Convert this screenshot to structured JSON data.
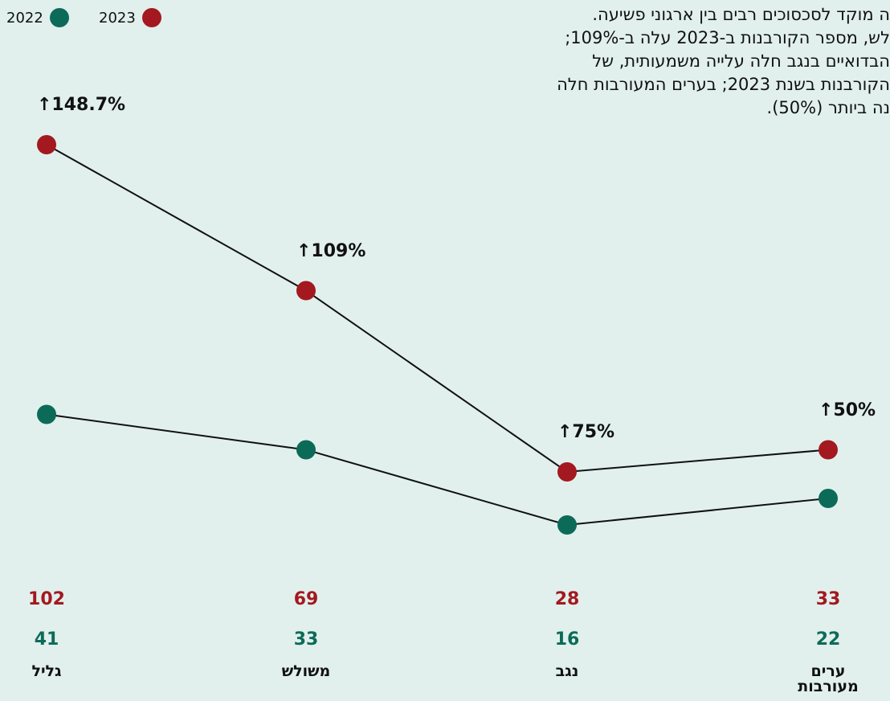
{
  "chart_data": {
    "type": "line",
    "description": [
      "ה מוקד לסכסוכים רבים בין ארגוני פשיעה.",
      "לש, מספר הקורבנות ב-2023 עלה ב-109%;",
      "הבדואיים בנגב חלה עלייה משמעותית, של",
      "הקורבנות בשנת 2023; בערים המעורבות חלה",
      "נה ביותר (50%)."
    ],
    "categories": [
      "גליל",
      "משולש",
      "נגב",
      "ערים מעורבות"
    ],
    "series": [
      {
        "name": "2023",
        "color": "#a3191f",
        "values": [
          102,
          69,
          28,
          33
        ]
      },
      {
        "name": "2022",
        "color": "#0c6b58",
        "values": [
          41,
          33,
          16,
          22
        ]
      }
    ],
    "annotations": [
      "↑148.7%",
      "↑109%",
      "↑75%",
      "↑50%"
    ],
    "ylim": [
      0,
      110
    ]
  }
}
